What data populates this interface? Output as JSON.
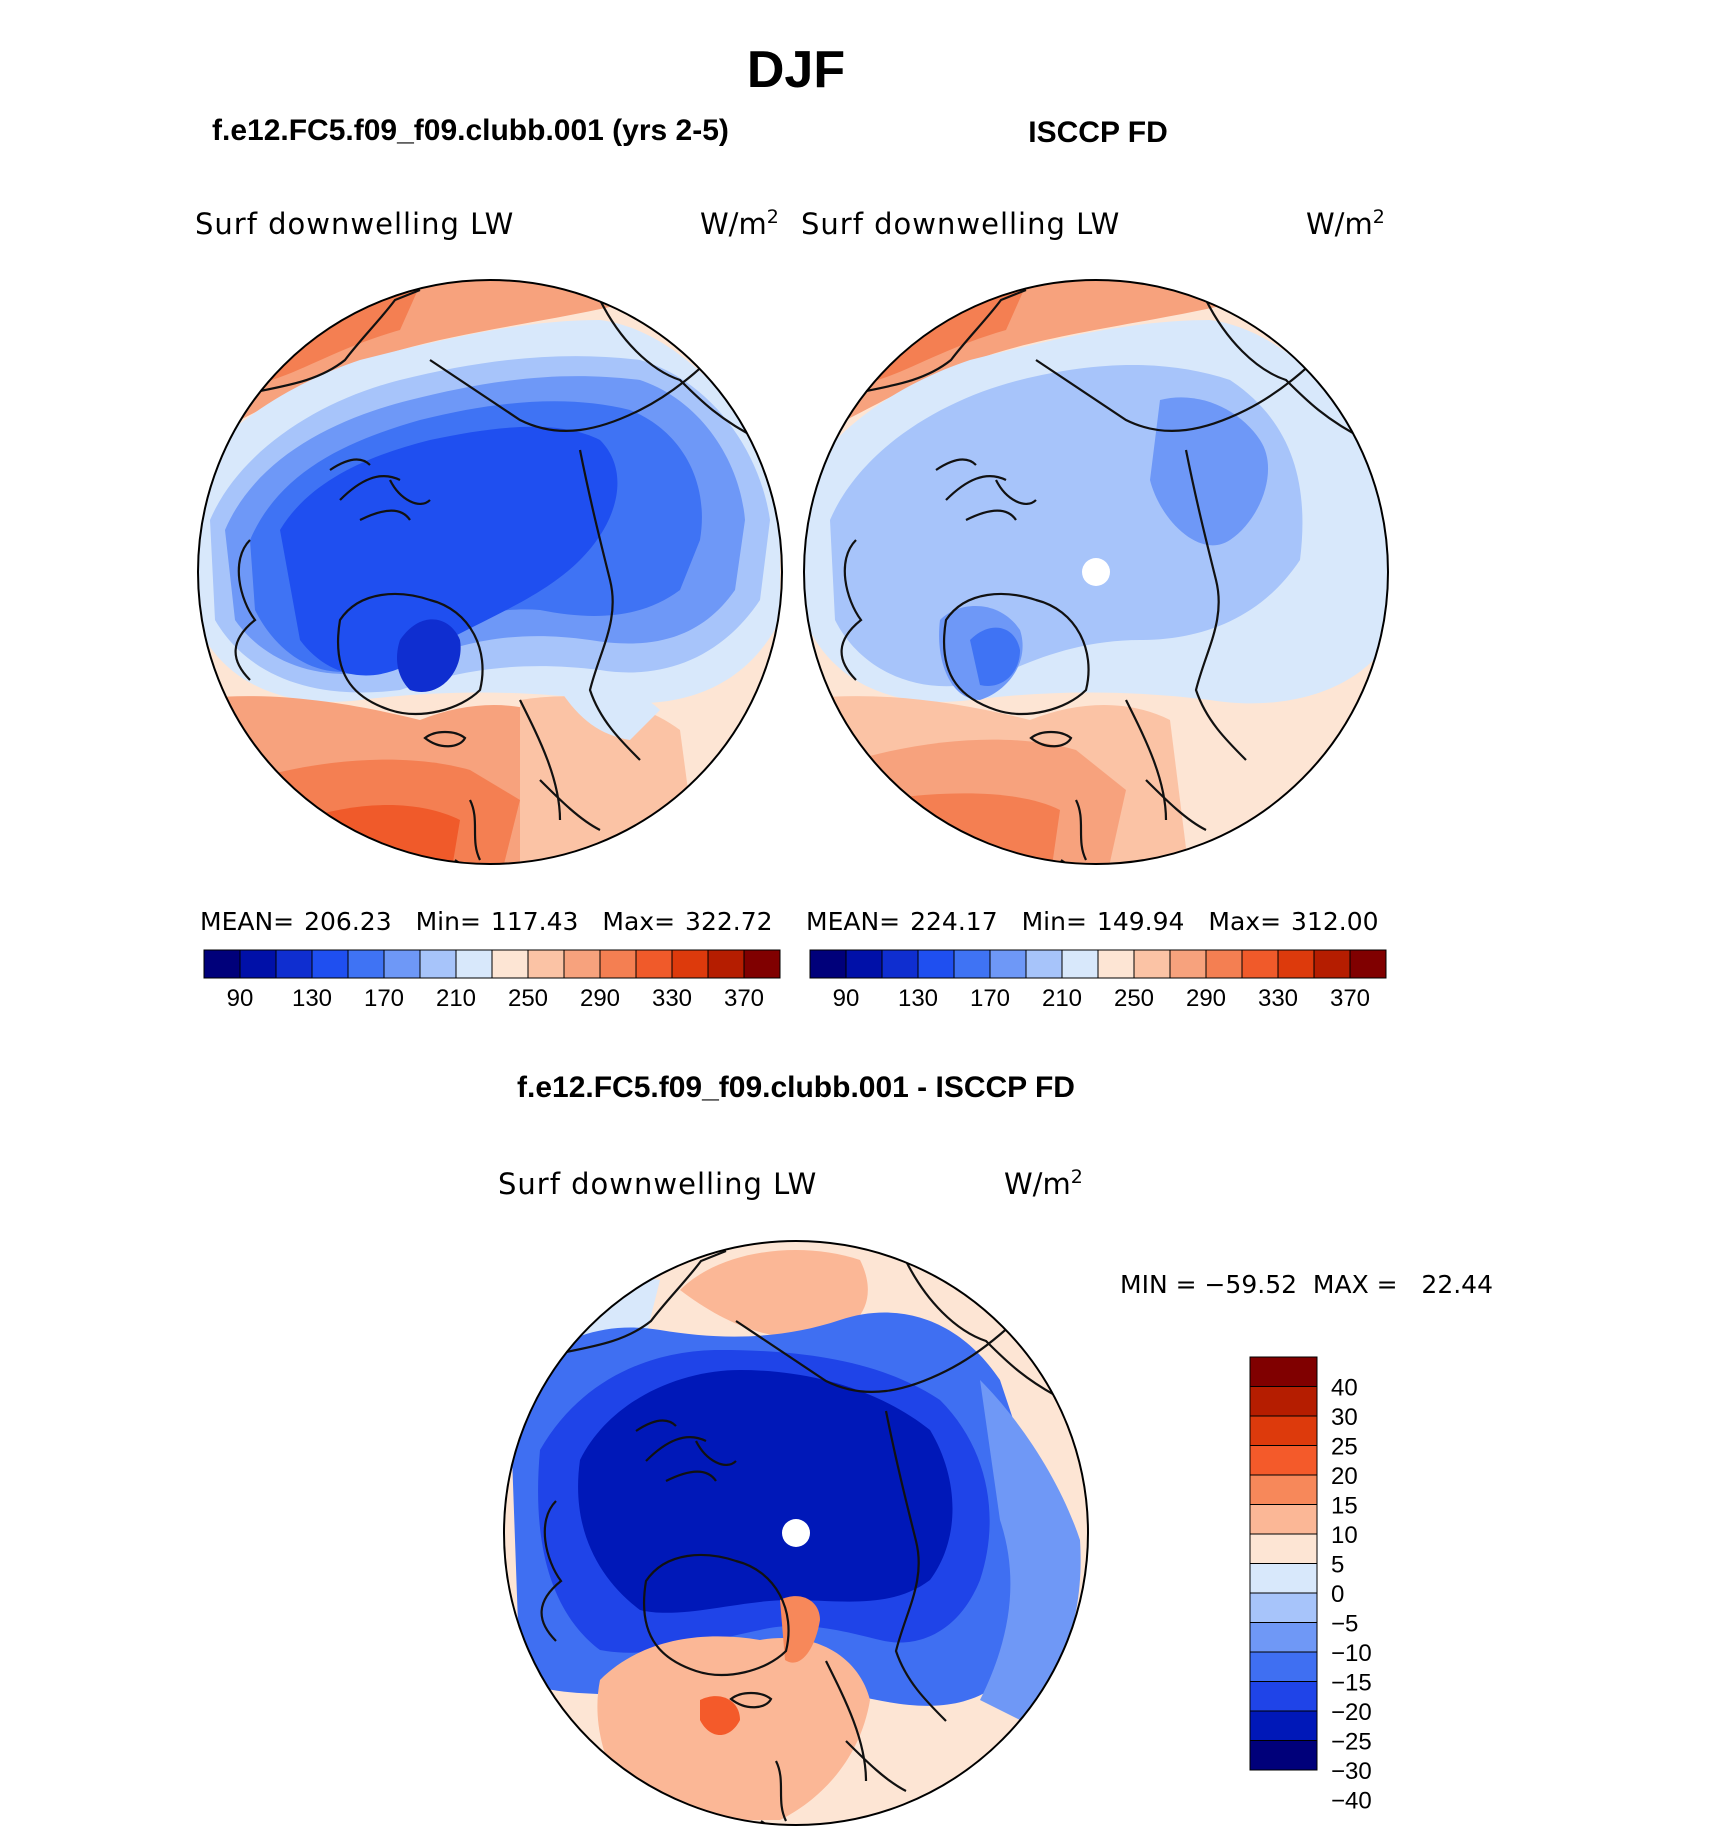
{
  "chart_data": {
    "type": "heatmap",
    "title": "DJF",
    "projection": "north polar stereographic",
    "colors": {
      "abs_scale": [
        "#00007a",
        "#0010a8",
        "#0f2ed0",
        "#1f4ff0",
        "#3f73f4",
        "#6e98f7",
        "#a7c4fa",
        "#d8e8fb",
        "#fde5d4",
        "#fbc3a5",
        "#f7a27d",
        "#f47f52",
        "#f05a2a",
        "#dd3a0c",
        "#b51d00",
        "#800000"
      ],
      "diff_scale": [
        "#00007a",
        "#0018b8",
        "#1f44e8",
        "#3f6ff2",
        "#6f98f6",
        "#a7c4fa",
        "#d8e8fb",
        "#fde5d4",
        "#fbb796",
        "#f7885a",
        "#f45a2a",
        "#dd3a0c",
        "#b51d00",
        "#800000"
      ],
      "coast": "#111111",
      "missing": "#ffffff"
    },
    "panels": [
      {
        "id": "model",
        "case_title": "f.e12.FC5.f09_f09.clubb.001 (yrs 2-5)",
        "variable": "Surf downwelling LW",
        "units": "W/m",
        "units_sup": "2",
        "stats": {
          "mean_label": "MEAN=",
          "mean": "206.23",
          "min_label": "Min=",
          "min": "117.43",
          "max_label": "Max=",
          "max": "322.72"
        },
        "colorbar_labels": [
          "90",
          "130",
          "170",
          "210",
          "250",
          "290",
          "330",
          "370"
        ]
      },
      {
        "id": "obs",
        "case_title": "ISCCP FD",
        "variable": "Surf downwelling LW",
        "units": "W/m",
        "units_sup": "2",
        "stats": {
          "mean_label": "MEAN=",
          "mean": "224.17",
          "min_label": "Min=",
          "min": "149.94",
          "max_label": "Max=",
          "max": "312.00"
        },
        "colorbar_labels": [
          "90",
          "130",
          "170",
          "210",
          "250",
          "290",
          "330",
          "370"
        ]
      },
      {
        "id": "diff",
        "case_title": "f.e12.FC5.f09_f09.clubb.001 - ISCCP FD",
        "variable": "Surf downwelling LW",
        "units": "W/m",
        "units_sup": "2",
        "stats_text": "MIN = −59.52  MAX =   22.44",
        "colorbar_labels": [
          "40",
          "30",
          "25",
          "20",
          "15",
          "10",
          "5",
          "0",
          "−5",
          "−10",
          "−15",
          "−20",
          "−25",
          "−30",
          "−40"
        ]
      }
    ]
  }
}
